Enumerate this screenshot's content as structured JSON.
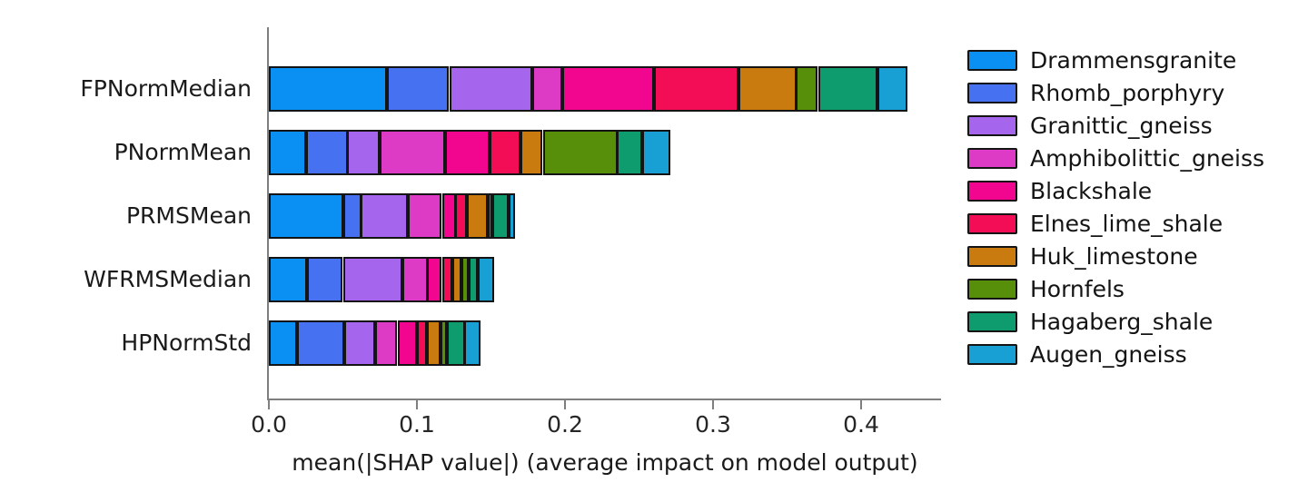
{
  "chart_data": {
    "type": "bar",
    "orientation": "horizontal-stacked",
    "title": "",
    "xlabel": "mean(|SHAP value|) (average impact on model output)",
    "ylabel": "",
    "xlim": [
      0,
      0.453
    ],
    "grid": false,
    "legend_position": "right",
    "categories": [
      "FPNormMedian",
      "PNormMean",
      "PRMSMean",
      "WFRMSMedian",
      "HPNormStd"
    ],
    "x_ticks": [
      0.0,
      0.1,
      0.2,
      0.3,
      0.4
    ],
    "x_tick_labels": [
      "0.0",
      "0.1",
      "0.2",
      "0.3",
      "0.4"
    ],
    "series": [
      {
        "name": "Drammensgranite",
        "color": "#0a8ff2",
        "values": [
          0.08,
          0.025,
          0.05,
          0.026,
          0.019
        ]
      },
      {
        "name": "Rhomb_porphyry",
        "color": "#4671f0",
        "values": [
          0.042,
          0.028,
          0.012,
          0.024,
          0.032
        ]
      },
      {
        "name": "Granittic_gneiss",
        "color": "#a565ec",
        "values": [
          0.056,
          0.022,
          0.032,
          0.04,
          0.021
        ]
      },
      {
        "name": "Amphibolittic_gneiss",
        "color": "#dd3bc6",
        "values": [
          0.02,
          0.044,
          0.023,
          0.017,
          0.015
        ]
      },
      {
        "name": "Blackshale",
        "color": "#f2068f",
        "values": [
          0.062,
          0.03,
          0.009,
          0.01,
          0.013
        ]
      },
      {
        "name": "Elnes_lime_shale",
        "color": "#f30d56",
        "values": [
          0.057,
          0.021,
          0.008,
          0.007,
          0.007
        ]
      },
      {
        "name": "Huk_limestone",
        "color": "#c97b10",
        "values": [
          0.039,
          0.015,
          0.014,
          0.006,
          0.009
        ]
      },
      {
        "name": "Hornfels",
        "color": "#578f0a",
        "values": [
          0.015,
          0.05,
          0.003,
          0.005,
          0.004
        ]
      },
      {
        "name": "Hagaberg_shale",
        "color": "#0e9c6e",
        "values": [
          0.04,
          0.017,
          0.011,
          0.006,
          0.012
        ]
      },
      {
        "name": "Augen_gneiss",
        "color": "#189fd4",
        "values": [
          0.02,
          0.019,
          0.004,
          0.011,
          0.011
        ]
      }
    ],
    "bar_totals": [
      0.431,
      0.271,
      0.166,
      0.152,
      0.143
    ]
  }
}
